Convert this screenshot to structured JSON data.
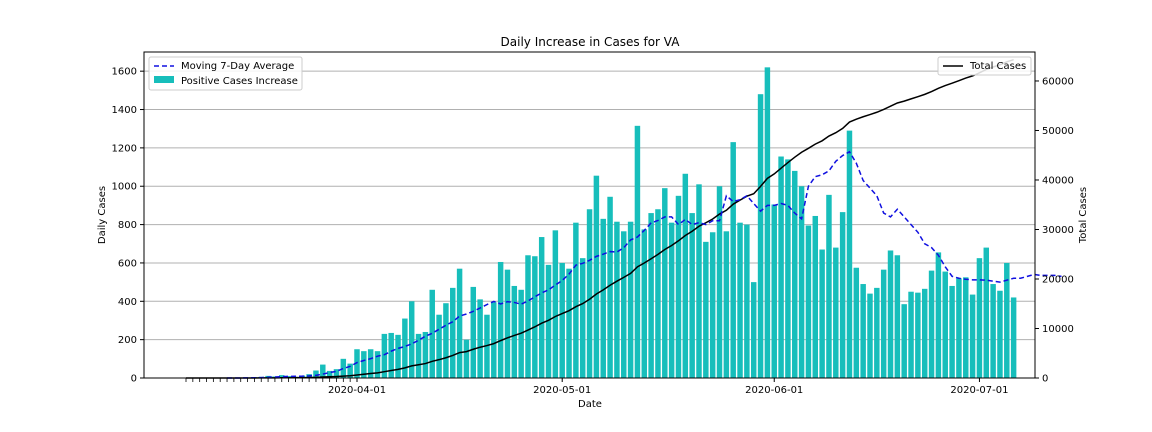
{
  "chart_data": {
    "type": "bar",
    "title": "Daily Increase in Cases for VA",
    "xlabel": "Date",
    "ylabel": "Daily Cases",
    "y2label": "Total Cases",
    "start_date": "2020-03-07",
    "x_tick_labels": [
      "2020-04-01",
      "2020-05-01",
      "2020-06-01",
      "2020-07-01"
    ],
    "y_ticks": [
      0,
      200,
      400,
      600,
      800,
      1000,
      1200,
      1400,
      1600
    ],
    "y2_ticks": [
      0,
      10000,
      20000,
      30000,
      40000,
      50000,
      60000
    ],
    "ylim": [
      0,
      1700
    ],
    "y2lim": [
      0,
      65853
    ],
    "grid": true,
    "legend_left": [
      "Moving 7-Day Average",
      "Positive Cases Increase"
    ],
    "legend_right": [
      "Total Cases"
    ],
    "series": [
      {
        "name": "Positive Cases Increase",
        "kind": "bar",
        "color": "#17bebb",
        "values": [
          0,
          0,
          0,
          0,
          0,
          0,
          0,
          0,
          2,
          3,
          4,
          6,
          11,
          8,
          15,
          10,
          6,
          13,
          20,
          39,
          70,
          37,
          46,
          100,
          75,
          150,
          140,
          150,
          140,
          230,
          235,
          225,
          310,
          400,
          230,
          240,
          460,
          330,
          390,
          470,
          570,
          200,
          475,
          410,
          330,
          395,
          605,
          565,
          480,
          460,
          640,
          635,
          735,
          590,
          770,
          600,
          570,
          810,
          625,
          880,
          1055,
          830,
          945,
          815,
          765,
          815,
          1315,
          775,
          860,
          880,
          990,
          810,
          950,
          1065,
          860,
          1010,
          710,
          760,
          1000,
          765,
          1230,
          810,
          800,
          500,
          1480,
          1620,
          905,
          1155,
          1140,
          1080,
          1000,
          795,
          845,
          670,
          955,
          680,
          865,
          1290,
          575,
          490,
          440,
          470,
          565,
          665,
          640,
          385,
          450,
          445,
          465,
          560,
          655,
          555,
          480,
          520,
          525,
          435,
          625,
          680,
          490,
          455,
          600,
          420
        ],
        "cumulative": [
          0,
          0,
          0,
          0,
          0,
          0,
          0,
          0,
          2,
          5,
          9,
          15,
          26,
          34,
          49,
          59,
          65,
          78,
          98,
          137,
          207,
          244,
          290,
          390,
          465,
          615,
          755,
          905,
          1045,
          1275,
          1510,
          1735,
          2045,
          2445,
          2675,
          2915,
          3375,
          3705,
          4095,
          4565,
          5135,
          5335,
          5810,
          6220,
          6550,
          6945,
          7550,
          8115,
          8595,
          9055,
          9695,
          10330,
          11065,
          11655,
          12425,
          13025,
          13595,
          14405,
          15030,
          15910,
          16965,
          17795,
          18740,
          19555,
          20320,
          21135,
          22450,
          23225,
          24085,
          24965,
          25955,
          26765,
          27715,
          28780,
          29640,
          30650,
          31360,
          32120,
          33120,
          33885,
          35115,
          35925,
          36725,
          37225,
          38705,
          40325,
          41230,
          42385,
          43525,
          44605,
          45605,
          46400,
          47245,
          47915,
          48870,
          49550,
          50415,
          51705,
          52280,
          52770,
          53210,
          53680,
          54245,
          54910,
          55550,
          55935,
          56385,
          56830,
          57295,
          57855,
          58510,
          59065,
          59545,
          60065,
          60590,
          61025,
          61650,
          62330,
          62820,
          63275,
          63875,
          64295
        ]
      },
      {
        "name": "Moving 7-Day Average",
        "kind": "line",
        "style": "dashed",
        "color": "#1010e0",
        "start_index": 6,
        "values": [
          0,
          0,
          0.3,
          0.7,
          1.3,
          2.1,
          3.7,
          4.9,
          7.0,
          8.4,
          9.0,
          9.6,
          11.0,
          13.9,
          20.4,
          28.1,
          34.9,
          49.6,
          60.7,
          80.3,
          91.3,
          100.9,
          113.7,
          121.4,
          139.6,
          154.3,
          164.6,
          177.9,
          196.8,
          217.9,
          233.3,
          254.1,
          275.0,
          293.6,
          322.9,
          333.6,
          348.0,
          365.0,
          382.9,
          399.3,
          386.3,
          397.9,
          394.1,
          385.0,
          401.4,
          423.6,
          443.6,
          459.3,
          485.0,
          508.6,
          542.1,
          588.6,
          597.9,
          613.6,
          634.3,
          645.7,
          659.3,
          657.1,
          679.3,
          720.0,
          735.0,
          770.0,
          808.6,
          821.4,
          840.0,
          840.0,
          800.0,
          827.1,
          800.0,
          810.0,
          800.0,
          820.0,
          820.0,
          950.0,
          920.0,
          930.0,
          950.0,
          910.0,
          870.0,
          900.0,
          900.0,
          910.0,
          900.0,
          860.0,
          830.0,
          1000.0,
          1050.0,
          1060.0,
          1080.0,
          1130.0,
          1160.0,
          1180.0,
          1120.0,
          1030.0,
          990.0,
          950.0,
          860.0,
          840.0,
          880.0,
          840.0,
          800.0,
          760.0,
          700.0,
          680.0,
          640.0,
          580.0,
          530.0,
          520.0,
          515.0,
          512.0,
          512.0,
          510.0,
          505.0,
          500.0,
          510.0,
          520.0,
          520.0,
          530.0,
          540.0,
          535.0,
          535.0,
          535.0,
          530.0
        ]
      },
      {
        "name": "Total Cases",
        "kind": "line",
        "axis": "right",
        "color": "#000000",
        "source": "cumulative"
      }
    ]
  }
}
